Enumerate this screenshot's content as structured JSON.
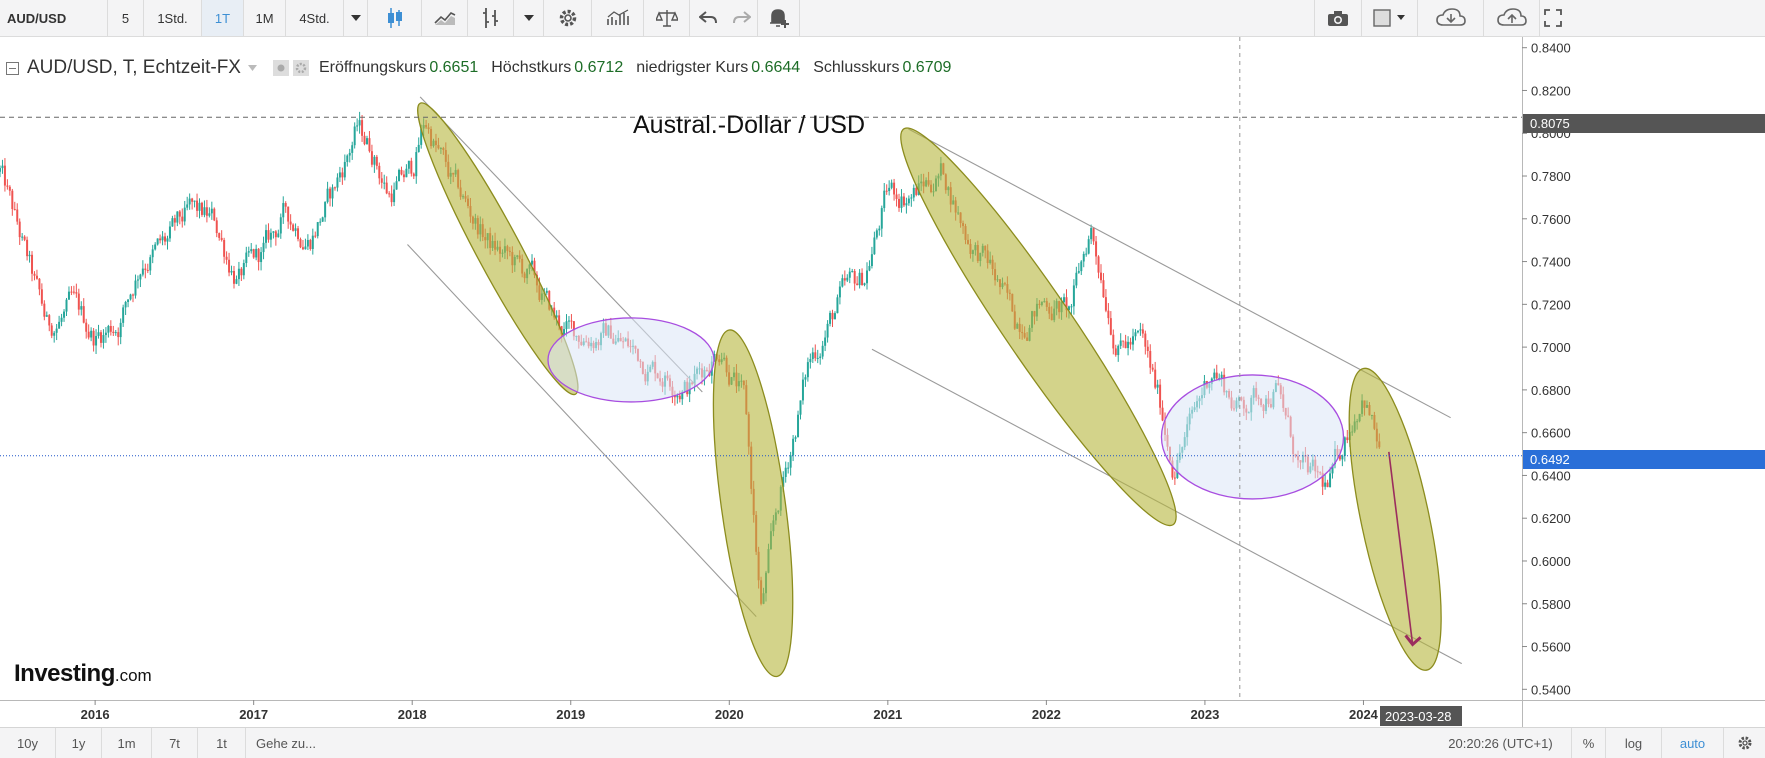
{
  "toolbar": {
    "symbol": "AUD/USD",
    "intervals": [
      "5",
      "1Std.",
      "1T",
      "1M",
      "4Std."
    ],
    "active_interval": "1T",
    "colors": {
      "active": "#3d8fd4"
    },
    "icons": [
      "chevron-down-icon",
      "candles-icon",
      "area-chart-icon",
      "bars-icon",
      "gear-icon",
      "indicators-icon",
      "compare-icon",
      "undo-icon",
      "redo-icon",
      "alert-icon",
      "camera-icon",
      "layout-icon",
      "cloud-download-icon",
      "cloud-upload-icon",
      "fullscreen-icon"
    ]
  },
  "legend": {
    "series_name": "AUD/USD, T, Echtzeit-FX",
    "open_label": "Eröffnungskurs",
    "open_value": "0.6651",
    "high_label": "Höchstkurs",
    "high_value": "0.6712",
    "low_label": "niedrigster Kurs",
    "low_value": "0.6644",
    "close_label": "Schlusskurs",
    "close_value": "0.6709"
  },
  "annotation_title": "Austral.-Dollar / USD",
  "watermark": {
    "brand": "Investing",
    "suffix": ".com"
  },
  "price_markers": {
    "high_line": "0.8075",
    "last_price": "0.6492"
  },
  "crosshair_date": "2023-03-28",
  "bottombar": {
    "ranges": [
      "10y",
      "1y",
      "1m",
      "7t",
      "1t"
    ],
    "goto": "Gehe zu...",
    "clock": "20:20:26 (UTC+1)",
    "percent": "%",
    "log": "log",
    "auto": "auto"
  },
  "colors": {
    "up": "#26a69a",
    "down": "#ef5350",
    "ellipse_fill": "#b5b53c",
    "ellipse_stroke": "#8c8c1e",
    "range_fill": "#dbe6f6",
    "range_stroke": "#a84ee0",
    "arrow": "#9b2d5e",
    "last_price_line": "#1e55c8"
  },
  "chart_data": {
    "type": "candlestick",
    "title": "Austral.-Dollar / USD",
    "x_ticks": [
      "2016",
      "2017",
      "2018",
      "2019",
      "2020",
      "2021",
      "2022",
      "2023",
      "2024"
    ],
    "y_ticks": [
      "0.8400",
      "0.8200",
      "0.8000",
      "0.7800",
      "0.7600",
      "0.7400",
      "0.7200",
      "0.7000",
      "0.6800",
      "0.6600",
      "0.6400",
      "0.6200",
      "0.6000",
      "0.5800",
      "0.5600",
      "0.5400"
    ],
    "ylim": [
      0.535,
      0.845
    ],
    "xlim": [
      2015.4,
      2025.0
    ],
    "grid": false,
    "series": [
      {
        "name": "AUD/USD",
        "x": [
          2015.4,
          2015.55,
          2015.7,
          2015.85,
          2016.0,
          2016.15,
          2016.3,
          2016.45,
          2016.6,
          2016.75,
          2016.9,
          2017.05,
          2017.2,
          2017.35,
          2017.5,
          2017.65,
          2017.75,
          2017.85,
          2018.0,
          2018.08,
          2018.25,
          2018.5,
          2018.75,
          2018.9,
          2019.0,
          2019.25,
          2019.5,
          2019.75,
          2019.95,
          2020.1,
          2020.2,
          2020.3,
          2020.5,
          2020.7,
          2020.85,
          2021.0,
          2021.15,
          2021.35,
          2021.5,
          2021.65,
          2021.8,
          2022.0,
          2022.15,
          2022.28,
          2022.45,
          2022.6,
          2022.72,
          2022.8,
          2022.9,
          2023.05,
          2023.2,
          2023.45,
          2023.6,
          2023.78,
          2023.9,
          2024.0,
          2024.1
        ],
        "close": [
          0.782,
          0.745,
          0.708,
          0.718,
          0.705,
          0.712,
          0.742,
          0.748,
          0.762,
          0.758,
          0.732,
          0.742,
          0.762,
          0.752,
          0.772,
          0.802,
          0.792,
          0.772,
          0.782,
          0.806,
          0.776,
          0.747,
          0.732,
          0.712,
          0.706,
          0.706,
          0.692,
          0.682,
          0.702,
          0.672,
          0.576,
          0.622,
          0.692,
          0.722,
          0.732,
          0.772,
          0.772,
          0.782,
          0.752,
          0.736,
          0.712,
          0.722,
          0.716,
          0.756,
          0.702,
          0.702,
          0.672,
          0.646,
          0.662,
          0.692,
          0.672,
          0.682,
          0.642,
          0.633,
          0.662,
          0.681,
          0.652
        ]
      }
    ],
    "annotations": [
      {
        "type": "ellipse",
        "label": ""
      },
      {
        "type": "ellipse",
        "label": ""
      },
      {
        "type": "ellipse",
        "label": ""
      },
      {
        "type": "ellipse",
        "label": ""
      },
      {
        "type": "range-ellipse",
        "label": ""
      },
      {
        "type": "range-ellipse",
        "label": ""
      },
      {
        "type": "trend-arrow",
        "label": ""
      }
    ]
  }
}
